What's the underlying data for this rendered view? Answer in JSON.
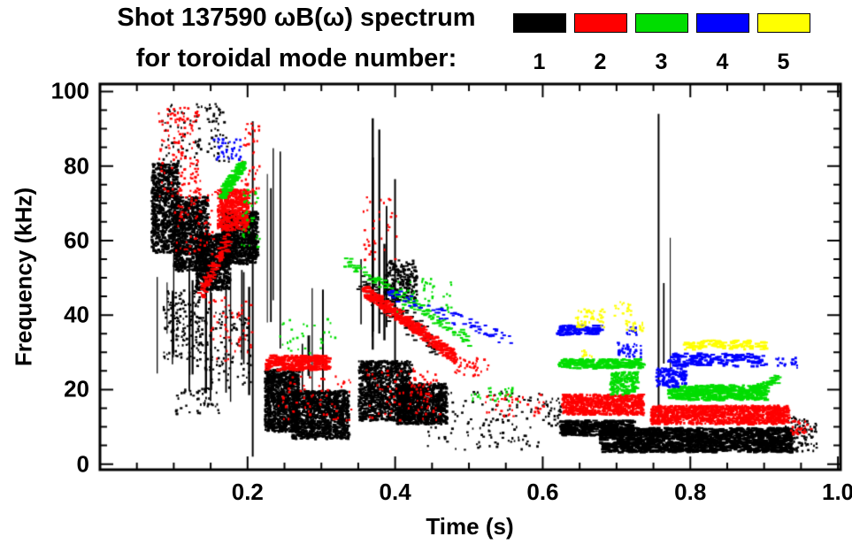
{
  "chart_data": {
    "type": "scatter",
    "title": "Shot 137590 ωB(ω) spectrum",
    "subtitle": "for toroidal mode number:",
    "xlabel": "Time (s)",
    "ylabel": "Frequency (kHz)",
    "xlim": [
      0,
      1.0035
    ],
    "ylim": [
      -1.5,
      102
    ],
    "xticks": [
      0.2,
      0.4,
      0.6,
      0.8,
      1.0
    ],
    "xtick_labels": [
      "0.2",
      "0.4",
      "0.6",
      "0.8",
      "1.0"
    ],
    "yticks": [
      0,
      20,
      40,
      60,
      80,
      100
    ],
    "ytick_labels": [
      "0",
      "20",
      "40",
      "60",
      "80",
      "100"
    ],
    "xminor": 0.05,
    "yminor": 5,
    "grid": false,
    "legend_position": "top-right",
    "legend": [
      {
        "label": "1",
        "color": "#000000"
      },
      {
        "label": "2",
        "color": "#ff0000"
      },
      {
        "label": "3",
        "color": "#00dd00"
      },
      {
        "label": "4",
        "color": "#0000ff"
      },
      {
        "label": "5",
        "color": "#ffff00"
      }
    ],
    "series": [
      {
        "name": "toroidal mode n=1",
        "color": "#000000",
        "clusters": [
          {
            "type": "blob",
            "x0": 0.068,
            "x1": 0.105,
            "y0": 57,
            "y1": 81,
            "n": 750
          },
          {
            "type": "blob",
            "x0": 0.098,
            "x1": 0.145,
            "y0": 52,
            "y1": 72,
            "n": 850
          },
          {
            "type": "blob",
            "x0": 0.128,
            "x1": 0.175,
            "y0": 47,
            "y1": 62,
            "n": 750
          },
          {
            "type": "blob",
            "x0": 0.163,
            "x1": 0.212,
            "y0": 54,
            "y1": 68,
            "n": 850
          },
          {
            "type": "specks",
            "x0": 0.082,
            "x1": 0.175,
            "y0": 80,
            "y1": 97,
            "n": 110
          },
          {
            "type": "specks",
            "x0": 0.085,
            "x1": 0.135,
            "y0": 28,
            "y1": 47,
            "n": 150
          },
          {
            "type": "specks",
            "x0": 0.13,
            "x1": 0.205,
            "y0": 20,
            "y1": 42,
            "n": 120
          },
          {
            "type": "specks",
            "x0": 0.1,
            "x1": 0.16,
            "y0": 13,
            "y1": 21,
            "n": 45
          },
          {
            "type": "vstreaks",
            "x0": 0.075,
            "x1": 0.205,
            "yb0": 16,
            "yb1": 38,
            "yt0": 46,
            "yt1": 58,
            "k": 16
          },
          {
            "type": "vline",
            "x": 0.207,
            "y0": 2,
            "y1": 92,
            "w": 2
          },
          {
            "type": "vstreaks",
            "x0": 0.226,
            "x1": 0.248,
            "yb0": 28,
            "yb1": 45,
            "yt0": 68,
            "yt1": 92,
            "k": 4
          },
          {
            "type": "blob",
            "x0": 0.222,
            "x1": 0.268,
            "y0": 9,
            "y1": 26,
            "n": 950
          },
          {
            "type": "blob",
            "x0": 0.258,
            "x1": 0.335,
            "y0": 7,
            "y1": 20,
            "n": 1150
          },
          {
            "type": "vstreaks",
            "x0": 0.262,
            "x1": 0.335,
            "yb0": 18,
            "yb1": 24,
            "yt0": 32,
            "yt1": 50,
            "k": 5
          },
          {
            "type": "blob",
            "x0": 0.349,
            "x1": 0.42,
            "y0": 12,
            "y1": 28,
            "n": 1050
          },
          {
            "type": "blob",
            "x0": 0.4,
            "x1": 0.468,
            "y0": 11,
            "y1": 22,
            "n": 950
          },
          {
            "type": "blob",
            "x0": 0.385,
            "x1": 0.428,
            "y0": 44,
            "y1": 55,
            "n": 180
          },
          {
            "type": "line",
            "x0": 0.352,
            "y0": 49,
            "x1": 0.452,
            "y1": 32,
            "n": 110,
            "jx": 0.006,
            "jy": 3.5
          },
          {
            "type": "vstreaks",
            "x0": 0.352,
            "x1": 0.405,
            "yb0": 26,
            "yb1": 40,
            "yt0": 52,
            "yt1": 96,
            "k": 8
          },
          {
            "type": "specks",
            "x0": 0.44,
            "x1": 0.6,
            "y0": 4,
            "y1": 20,
            "n": 130
          },
          {
            "type": "hband",
            "x0": 0.622,
            "x1": 0.72,
            "y0": 8,
            "y1": 12,
            "n": 380
          },
          {
            "type": "hband",
            "x0": 0.675,
            "x1": 0.935,
            "y0": 3.5,
            "y1": 10,
            "n": 1500
          },
          {
            "type": "vline",
            "x": 0.757,
            "y0": 12,
            "y1": 94,
            "w": 2
          },
          {
            "type": "vstreaks",
            "x0": 0.763,
            "x1": 0.778,
            "yb0": 24,
            "yb1": 35,
            "yt0": 45,
            "yt1": 62,
            "k": 2
          },
          {
            "type": "specks",
            "x0": 0.928,
            "x1": 0.97,
            "y0": 3,
            "y1": 13,
            "n": 90
          },
          {
            "type": "specks",
            "x0": 0.598,
            "x1": 0.625,
            "y0": 10,
            "y1": 18,
            "n": 35
          }
        ]
      },
      {
        "name": "toroidal mode n=2",
        "color": "#ff0000",
        "clusters": [
          {
            "type": "specks",
            "x0": 0.078,
            "x1": 0.135,
            "y0": 72,
            "y1": 96,
            "n": 140
          },
          {
            "type": "specks",
            "x0": 0.1,
            "x1": 0.155,
            "y0": 56,
            "y1": 74,
            "n": 70
          },
          {
            "type": "line",
            "x0": 0.135,
            "y0": 46,
            "x1": 0.172,
            "y1": 61,
            "n": 100,
            "jx": 0.004,
            "jy": 2
          },
          {
            "type": "blob",
            "x0": 0.158,
            "x1": 0.2,
            "y0": 63,
            "y1": 74,
            "n": 500
          },
          {
            "type": "specks",
            "x0": 0.188,
            "x1": 0.215,
            "y0": 70,
            "y1": 92,
            "n": 45
          },
          {
            "type": "specks",
            "x0": 0.145,
            "x1": 0.205,
            "y0": 28,
            "y1": 45,
            "n": 50
          },
          {
            "type": "hband",
            "x0": 0.222,
            "x1": 0.308,
            "y0": 25.5,
            "y1": 29.5,
            "n": 240
          },
          {
            "type": "specks",
            "x0": 0.24,
            "x1": 0.34,
            "y0": 12,
            "y1": 24,
            "n": 60
          },
          {
            "type": "line",
            "x0": 0.355,
            "y0": 47,
            "x1": 0.478,
            "y1": 29,
            "n": 420,
            "jx": 0.004,
            "jy": 1.6
          },
          {
            "type": "specks",
            "x0": 0.478,
            "x1": 0.525,
            "y0": 24,
            "y1": 29,
            "n": 45
          },
          {
            "type": "specks",
            "x0": 0.36,
            "x1": 0.46,
            "y0": 12,
            "y1": 26,
            "n": 90
          },
          {
            "type": "specks",
            "x0": 0.355,
            "x1": 0.405,
            "y0": 55,
            "y1": 72,
            "n": 35
          },
          {
            "type": "specks",
            "x0": 0.52,
            "x1": 0.6,
            "y0": 13,
            "y1": 19,
            "n": 45
          },
          {
            "type": "blob",
            "x0": 0.625,
            "x1": 0.735,
            "y0": 13.5,
            "y1": 19,
            "n": 750
          },
          {
            "type": "blob",
            "x0": 0.745,
            "x1": 0.932,
            "y0": 11,
            "y1": 16,
            "n": 1200
          },
          {
            "type": "specks",
            "x0": 0.935,
            "x1": 0.962,
            "y0": 8,
            "y1": 12,
            "n": 30
          }
        ]
      },
      {
        "name": "toroidal mode n=3",
        "color": "#00dd00",
        "clusters": [
          {
            "type": "line",
            "x0": 0.163,
            "y0": 73,
            "x1": 0.192,
            "y1": 80.5,
            "n": 180,
            "jx": 0.003,
            "jy": 1.6
          },
          {
            "type": "specks",
            "x0": 0.19,
            "x1": 0.215,
            "y0": 58,
            "y1": 74,
            "n": 35
          },
          {
            "type": "specks",
            "x0": 0.24,
            "x1": 0.32,
            "y0": 30,
            "y1": 40,
            "n": 30
          },
          {
            "type": "line",
            "x0": 0.33,
            "y0": 55,
            "x1": 0.5,
            "y1": 33,
            "n": 120,
            "jx": 0.005,
            "jy": 1.4
          },
          {
            "type": "specks",
            "x0": 0.4,
            "x1": 0.475,
            "y0": 41,
            "y1": 50,
            "n": 50
          },
          {
            "type": "specks",
            "x0": 0.5,
            "x1": 0.57,
            "y0": 17,
            "y1": 21,
            "n": 28
          },
          {
            "type": "hband",
            "x0": 0.62,
            "x1": 0.732,
            "y0": 26,
            "y1": 28.5,
            "n": 220
          },
          {
            "type": "blob",
            "x0": 0.69,
            "x1": 0.728,
            "y0": 19,
            "y1": 25,
            "n": 180
          },
          {
            "type": "hband",
            "x0": 0.768,
            "x1": 0.9,
            "y0": 17.5,
            "y1": 21.5,
            "n": 420
          },
          {
            "type": "line",
            "x0": 0.878,
            "y0": 20,
            "x1": 0.915,
            "y1": 23,
            "n": 70,
            "jx": 0.003,
            "jy": 1.2
          }
        ]
      },
      {
        "name": "toroidal mode n=4",
        "color": "#0000ff",
        "clusters": [
          {
            "type": "specks",
            "x0": 0.152,
            "x1": 0.19,
            "y0": 82,
            "y1": 88,
            "n": 40
          },
          {
            "type": "line",
            "x0": 0.39,
            "y0": 46,
            "x1": 0.56,
            "y1": 33,
            "n": 70,
            "jx": 0.005,
            "jy": 1.4
          },
          {
            "type": "hband",
            "x0": 0.618,
            "x1": 0.675,
            "y0": 35,
            "y1": 37.5,
            "n": 90
          },
          {
            "type": "specks",
            "x0": 0.698,
            "x1": 0.732,
            "y0": 29,
            "y1": 33,
            "n": 45
          },
          {
            "type": "specks",
            "x0": 0.712,
            "x1": 0.726,
            "y0": 35,
            "y1": 37,
            "n": 15
          },
          {
            "type": "hband",
            "x0": 0.768,
            "x1": 0.9,
            "y0": 26.5,
            "y1": 30,
            "n": 160
          },
          {
            "type": "blob",
            "x0": 0.752,
            "x1": 0.792,
            "y0": 21,
            "y1": 26,
            "n": 140
          },
          {
            "type": "specks",
            "x0": 0.915,
            "x1": 0.945,
            "y0": 26,
            "y1": 29,
            "n": 22
          }
        ]
      },
      {
        "name": "toroidal mode n=5",
        "color": "#ffff00",
        "clusters": [
          {
            "type": "specks",
            "x0": 0.643,
            "x1": 0.682,
            "y0": 37,
            "y1": 42,
            "n": 50
          },
          {
            "type": "specks",
            "x0": 0.695,
            "x1": 0.718,
            "y0": 40,
            "y1": 44,
            "n": 18
          },
          {
            "type": "specks",
            "x0": 0.71,
            "x1": 0.737,
            "y0": 36,
            "y1": 39,
            "n": 22
          },
          {
            "type": "hband",
            "x0": 0.788,
            "x1": 0.9,
            "y0": 31,
            "y1": 33.5,
            "n": 100
          },
          {
            "type": "specks",
            "x0": 0.652,
            "x1": 0.672,
            "y0": 29,
            "y1": 31,
            "n": 10
          }
        ]
      }
    ]
  }
}
